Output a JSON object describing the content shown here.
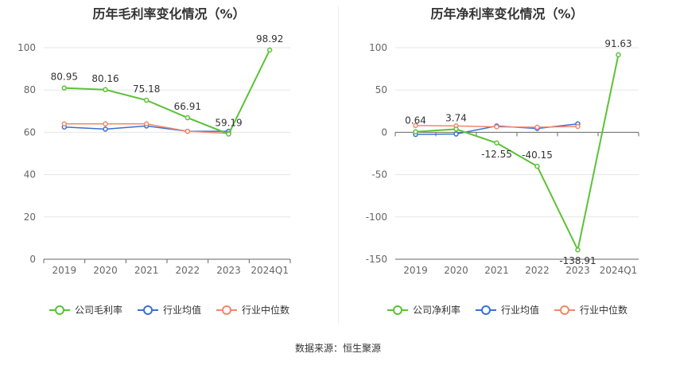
{
  "source_text": "数据来源：恒生聚源",
  "chart_data": [
    {
      "type": "line",
      "title": "历年毛利率变化情况（%）",
      "categories": [
        "2019",
        "2020",
        "2021",
        "2022",
        "2023",
        "2024Q1"
      ],
      "ylim": [
        0,
        100
      ],
      "yticks": [
        0,
        20,
        40,
        60,
        80,
        100
      ],
      "grid": true,
      "legend_position": "bottom",
      "series": [
        {
          "name": "公司毛利率",
          "color": "#5bc236",
          "values": [
            80.95,
            80.16,
            75.18,
            66.91,
            59.19,
            98.92
          ],
          "labels": true,
          "width": 2
        },
        {
          "name": "行业均值",
          "color": "#3c6fd1",
          "values": [
            62.5,
            61.5,
            63.0,
            60.5,
            60.5,
            null
          ],
          "labels": false,
          "width": 1.5
        },
        {
          "name": "行业中位数",
          "color": "#f2876a",
          "values": [
            64.0,
            64.0,
            64.0,
            60.5,
            59.5,
            null
          ],
          "labels": false,
          "width": 1.5
        }
      ]
    },
    {
      "type": "line",
      "title": "历年净利率变化情况（%）",
      "categories": [
        "2019",
        "2020",
        "2021",
        "2022",
        "2023",
        "2024Q1"
      ],
      "ylim": [
        -150,
        100
      ],
      "yticks": [
        -150,
        -100,
        -50,
        0,
        50,
        100
      ],
      "grid": true,
      "legend_position": "bottom",
      "series": [
        {
          "name": "公司净利率",
          "color": "#5bc236",
          "values": [
            0.64,
            3.74,
            -12.55,
            -40.15,
            -138.91,
            91.63
          ],
          "labels": true,
          "width": 2
        },
        {
          "name": "行业均值",
          "color": "#3c6fd1",
          "values": [
            -2.5,
            -2.0,
            7.5,
            4.5,
            10.0,
            null
          ],
          "labels": false,
          "width": 1.5
        },
        {
          "name": "行业中位数",
          "color": "#f2876a",
          "values": [
            8.0,
            7.5,
            6.5,
            6.0,
            7.0,
            null
          ],
          "labels": false,
          "width": 1.5
        }
      ]
    }
  ]
}
